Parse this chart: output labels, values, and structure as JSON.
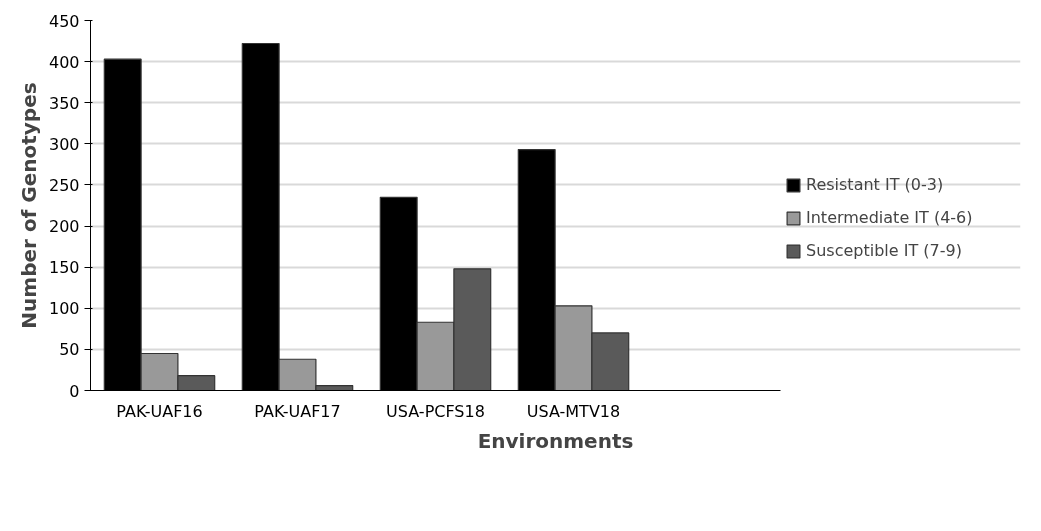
{
  "chart_data": {
    "type": "bar",
    "xlabel": "Environments",
    "ylabel": "Number of Genotypes",
    "categories": [
      "PAK-UAF16",
      "PAK-UAF17",
      "USA-PCFS18",
      "USA-MTV18",
      null
    ],
    "series": [
      {
        "name": "Resistant IT (0-3)",
        "color": "#000000",
        "values": [
          403,
          422,
          235,
          293,
          null
        ]
      },
      {
        "name": "Intermediate IT (4-6)",
        "color": "#999999",
        "values": [
          45,
          38,
          83,
          103,
          null
        ]
      },
      {
        "name": "Susceptible IT (7-9)",
        "color": "#5a5a5a",
        "values": [
          18,
          6,
          148,
          70,
          null
        ]
      }
    ],
    "ylim": [
      0,
      450
    ],
    "yticks": [
      0,
      50,
      100,
      150,
      200,
      250,
      300,
      350,
      400,
      450
    ],
    "grid": "y",
    "legend": "right"
  }
}
